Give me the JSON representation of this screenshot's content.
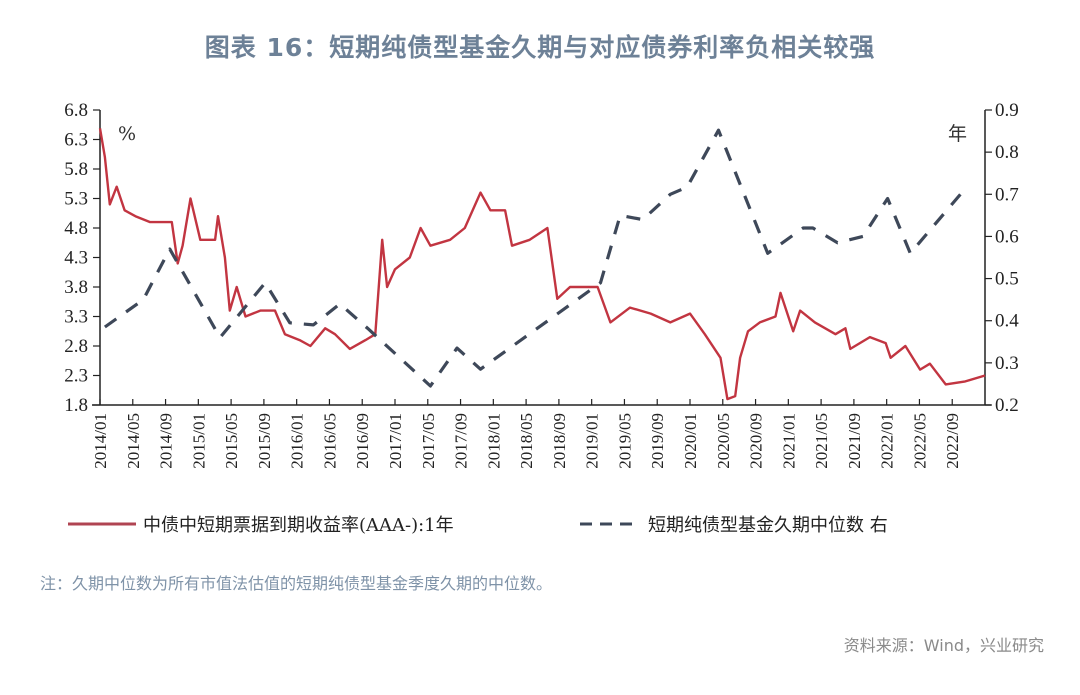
{
  "title": "图表 16：短期纯债型基金久期与对应债券利率负相关较强",
  "note": "注：久期中位数为所有市值法估值的短期纯债型基金季度久期的中位数。",
  "source": "资料来源：Wind，兴业研究",
  "colors": {
    "yield": "#c23541",
    "duration": "#3e4859",
    "title": "#6d8197"
  },
  "chart_data": {
    "type": "line",
    "title": "图表 16：短期纯债型基金久期与对应债券利率负相关较强",
    "x_unit": "decimal year",
    "xlim": [
      2014.0,
      2023.0
    ],
    "x_tick_labels": [
      "2014/01",
      "2014/05",
      "2014/09",
      "2015/01",
      "2015/05",
      "2015/09",
      "2016/01",
      "2016/05",
      "2016/09",
      "2017/01",
      "2017/05",
      "2017/09",
      "2018/01",
      "2018/05",
      "2018/09",
      "2019/01",
      "2019/05",
      "2019/09",
      "2020/01",
      "2020/05",
      "2020/09",
      "2021/01",
      "2021/05",
      "2021/09",
      "2022/01",
      "2022/05",
      "2022/09"
    ],
    "y_left": {
      "label": "%",
      "lim": [
        1.8,
        6.8
      ],
      "ticks": [
        "1.8",
        "2.3",
        "2.8",
        "3.3",
        "3.8",
        "4.3",
        "4.8",
        "5.3",
        "5.8",
        "6.3",
        "6.8"
      ]
    },
    "y_right": {
      "label": "年",
      "lim": [
        0.2,
        0.9
      ],
      "ticks": [
        "0.2",
        "0.3",
        "0.4",
        "0.5",
        "0.6",
        "0.7",
        "0.8",
        "0.9"
      ]
    },
    "grid": false,
    "legend_position": "bottom",
    "series": [
      {
        "name": "中债中短期票据到期收益率(AAA-):1年",
        "axis": "left",
        "style": "solid",
        "x": [
          2014.0,
          2014.05,
          2014.1,
          2014.17,
          2014.25,
          2014.36,
          2014.51,
          2014.66,
          2014.73,
          2014.79,
          2014.84,
          2014.92,
          2015.02,
          2015.17,
          2015.2,
          2015.27,
          2015.32,
          2015.39,
          2015.48,
          2015.63,
          2015.78,
          2015.88,
          2016.03,
          2016.14,
          2016.29,
          2016.39,
          2016.54,
          2016.7,
          2016.8,
          2016.87,
          2016.92,
          2017.0,
          2017.15,
          2017.26,
          2017.36,
          2017.56,
          2017.71,
          2017.87,
          2017.97,
          2018.12,
          2018.19,
          2018.37,
          2018.55,
          2018.65,
          2018.78,
          2019.06,
          2019.19,
          2019.39,
          2019.6,
          2019.8,
          2020.0,
          2020.15,
          2020.31,
          2020.38,
          2020.46,
          2020.51,
          2020.59,
          2020.71,
          2020.87,
          2020.92,
          2021.05,
          2021.12,
          2021.27,
          2021.48,
          2021.58,
          2021.63,
          2021.83,
          2021.99,
          2022.04,
          2022.19,
          2022.34,
          2022.44,
          2022.6,
          2022.8,
          2023.0
        ],
        "values": [
          6.49,
          6.0,
          5.2,
          5.5,
          5.1,
          5.0,
          4.9,
          4.9,
          4.9,
          4.2,
          4.5,
          5.3,
          4.6,
          4.6,
          5.0,
          4.3,
          3.4,
          3.8,
          3.3,
          3.4,
          3.4,
          3.0,
          2.9,
          2.8,
          3.1,
          3.0,
          2.75,
          2.9,
          3.0,
          4.6,
          3.8,
          4.1,
          4.3,
          4.8,
          4.5,
          4.6,
          4.8,
          5.4,
          5.1,
          5.1,
          4.5,
          4.6,
          4.8,
          3.6,
          3.8,
          3.8,
          3.2,
          3.45,
          3.35,
          3.2,
          3.35,
          3.0,
          2.6,
          1.9,
          1.95,
          2.6,
          3.05,
          3.2,
          3.3,
          3.7,
          3.05,
          3.4,
          3.2,
          3.0,
          3.1,
          2.75,
          2.95,
          2.85,
          2.6,
          2.8,
          2.4,
          2.5,
          2.15,
          2.2,
          2.3
        ]
      },
      {
        "name": "短期纯债型基金久期中位数 右",
        "axis": "right",
        "style": "dashed",
        "x": [
          2014.05,
          2014.44,
          2014.71,
          2015.22,
          2015.68,
          2015.93,
          2016.17,
          2016.44,
          2016.73,
          2017.36,
          2017.63,
          2017.87,
          2019.09,
          2019.29,
          2019.52,
          2019.8,
          2019.97,
          2020.29,
          2020.79,
          2021.15,
          2021.25,
          2021.5,
          2021.76,
          2022.01,
          2022.24,
          2022.75
        ],
        "values": [
          0.385,
          0.45,
          0.57,
          0.36,
          0.49,
          0.395,
          0.39,
          0.44,
          0.38,
          0.245,
          0.335,
          0.285,
          0.49,
          0.65,
          0.64,
          0.7,
          0.717,
          0.852,
          0.56,
          0.62,
          0.62,
          0.585,
          0.6,
          0.69,
          0.56,
          0.7
        ]
      }
    ]
  }
}
